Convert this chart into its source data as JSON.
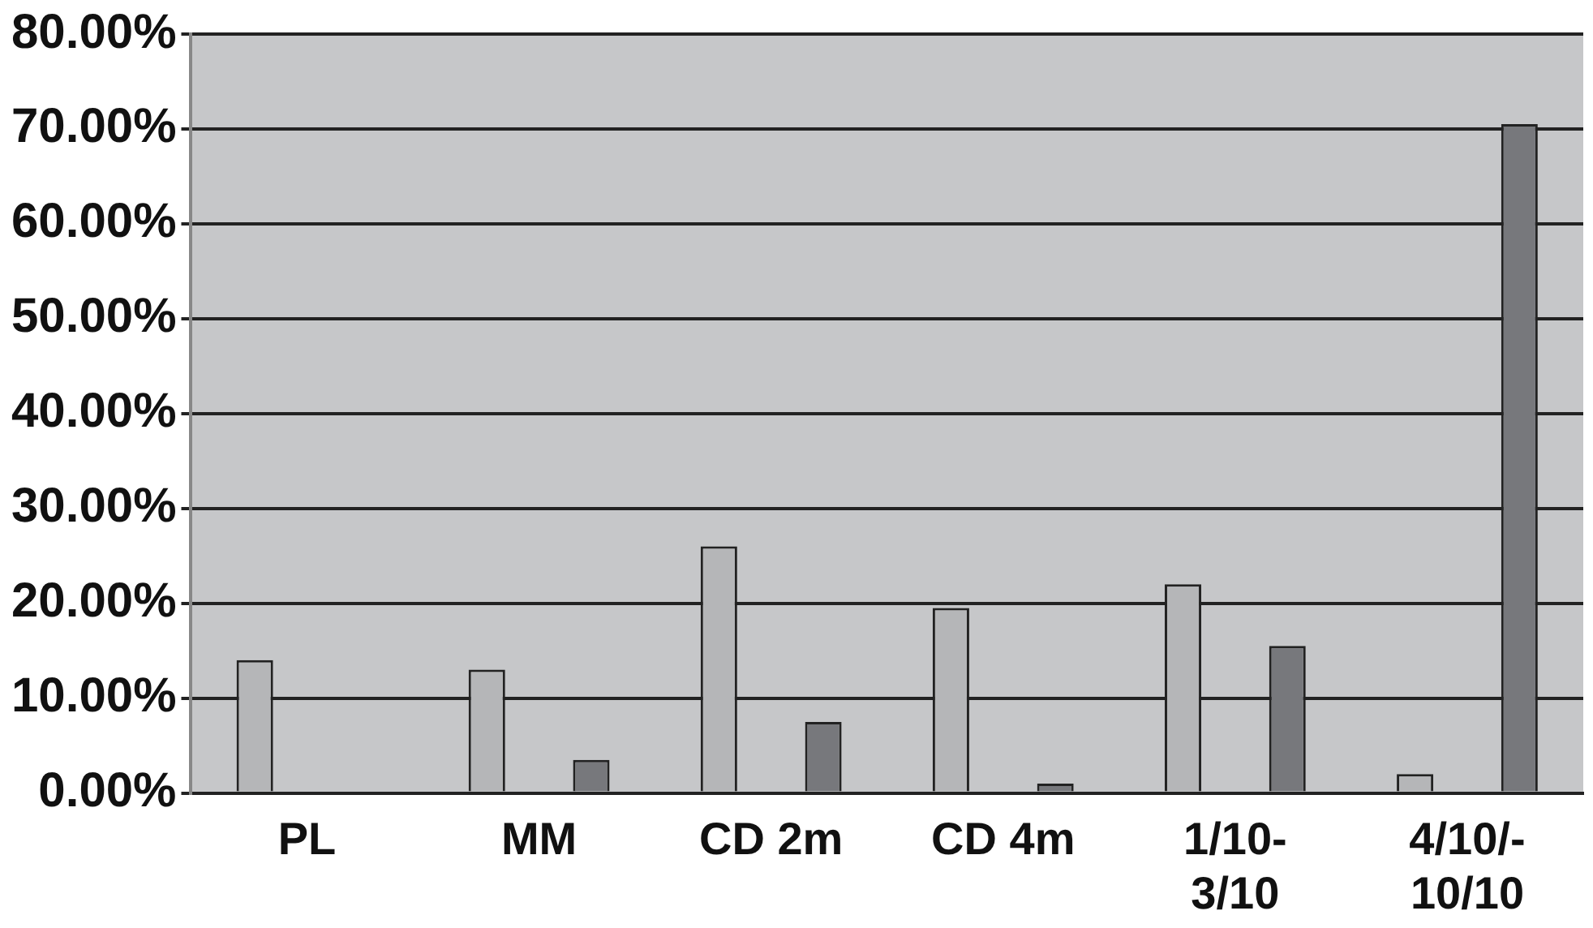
{
  "chart_data": {
    "type": "bar",
    "categories": [
      "PL",
      "MM",
      "CD 2m",
      "CD 4m",
      "1/10-3/10",
      "4/10/-10/10"
    ],
    "series": [
      {
        "color": "#b5b6b8",
        "values": [
          14,
          13,
          26,
          19.5,
          22,
          2
        ]
      },
      {
        "color": "#77787c",
        "values": [
          0,
          3.5,
          7.5,
          1,
          15.5,
          70.5
        ]
      }
    ],
    "ylim": [
      0,
      80
    ],
    "yticks": [
      {
        "value": 0,
        "label": "0.00%"
      },
      {
        "value": 10,
        "label": "10.00%"
      },
      {
        "value": 20,
        "label": "20.00%"
      },
      {
        "value": 30,
        "label": "30.00%"
      },
      {
        "value": 40,
        "label": "40.00%"
      },
      {
        "value": 50,
        "label": "50.00%"
      },
      {
        "value": 60,
        "label": "60.00%"
      },
      {
        "value": 70,
        "label": "70.00%"
      },
      {
        "value": 80,
        "label": "80.00%"
      }
    ],
    "grid": "y",
    "legend": false
  }
}
